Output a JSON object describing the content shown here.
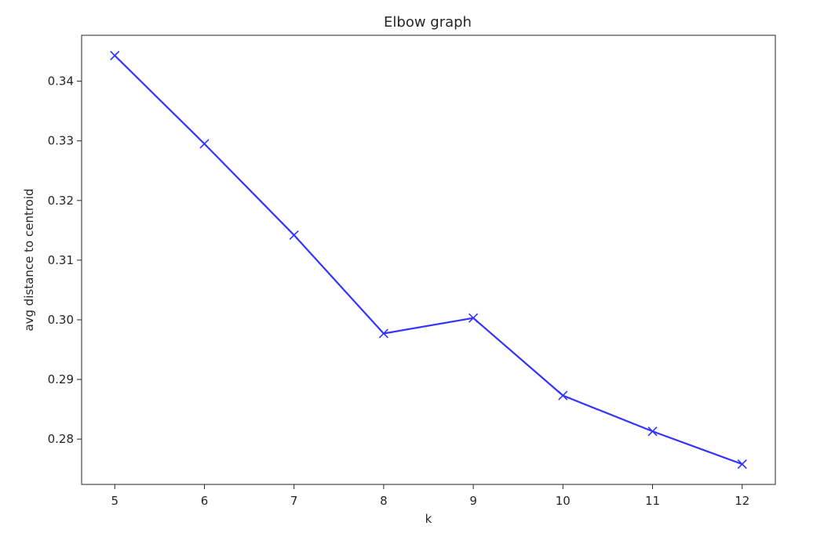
{
  "chart_data": {
    "type": "line",
    "title": "Elbow graph",
    "xlabel": "k",
    "ylabel": "avg distance to centroid",
    "x": [
      5,
      6,
      7,
      8,
      9,
      10,
      11,
      12
    ],
    "y": [
      0.3443,
      0.3295,
      0.3142,
      0.2977,
      0.3003,
      0.2873,
      0.2813,
      0.2758
    ],
    "xlim": [
      4.63,
      12.37
    ],
    "ylim": [
      0.2724,
      0.3477
    ],
    "xticks": [
      5,
      6,
      7,
      8,
      9,
      10,
      11,
      12
    ],
    "xtick_labels": [
      "5",
      "6",
      "7",
      "8",
      "9",
      "10",
      "11",
      "12"
    ],
    "yticks": [
      0.28,
      0.29,
      0.3,
      0.31,
      0.32,
      0.33,
      0.34
    ],
    "ytick_labels": [
      "0.28",
      "0.29",
      "0.30",
      "0.31",
      "0.32",
      "0.33",
      "0.34"
    ],
    "marker": "x",
    "grid": false,
    "line_color": "#3333ff",
    "axis_color": "#262626"
  }
}
